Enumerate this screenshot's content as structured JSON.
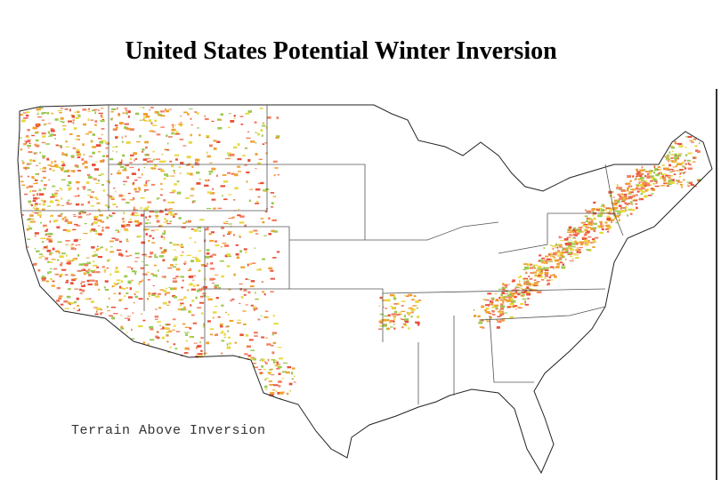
{
  "header": {
    "title": "United States Potential Winter Inversion"
  },
  "map": {
    "legend_label": "Terrain Above Inversion"
  }
}
